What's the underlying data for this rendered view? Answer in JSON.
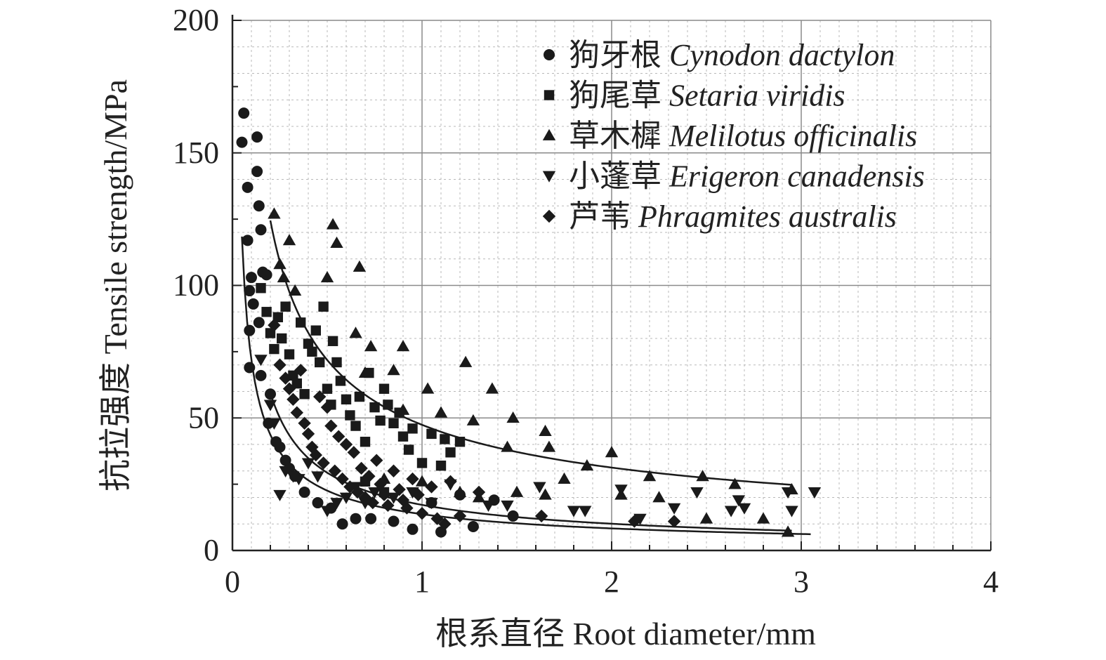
{
  "chart_data": {
    "type": "scatter",
    "xlabel": "根系直径 Root diameter/mm",
    "ylabel": "抗拉强度 Tensile strength/MPa",
    "xlim": [
      0,
      4
    ],
    "ylim": [
      0,
      200
    ],
    "x_ticks": [
      "0",
      "1",
      "2",
      "3",
      "4"
    ],
    "y_ticks": [
      "0",
      "50",
      "100",
      "150",
      "200"
    ],
    "grid": true,
    "legend_position": "top-right",
    "series": [
      {
        "name": "狗牙根 Cynodon dactylon",
        "marker": "circle",
        "points": [
          [
            0.05,
            154
          ],
          [
            0.06,
            165
          ],
          [
            0.08,
            137
          ],
          [
            0.08,
            117
          ],
          [
            0.09,
            98
          ],
          [
            0.1,
            103
          ],
          [
            0.11,
            93
          ],
          [
            0.09,
            83
          ],
          [
            0.09,
            69
          ],
          [
            0.13,
            156
          ],
          [
            0.13,
            143
          ],
          [
            0.14,
            130
          ],
          [
            0.15,
            121
          ],
          [
            0.16,
            105
          ],
          [
            0.18,
            104
          ],
          [
            0.14,
            86
          ],
          [
            0.15,
            66
          ],
          [
            0.2,
            59
          ],
          [
            0.19,
            48
          ],
          [
            0.23,
            41
          ],
          [
            0.25,
            39
          ],
          [
            0.28,
            34
          ],
          [
            0.3,
            31
          ],
          [
            0.33,
            28
          ],
          [
            0.38,
            22
          ],
          [
            0.45,
            18
          ],
          [
            0.52,
            16
          ],
          [
            0.58,
            10
          ],
          [
            0.65,
            12
          ],
          [
            0.73,
            12
          ],
          [
            0.85,
            11
          ],
          [
            0.95,
            8
          ],
          [
            1.05,
            18
          ],
          [
            1.1,
            7
          ],
          [
            1.2,
            21
          ],
          [
            1.27,
            9
          ],
          [
            1.38,
            19
          ],
          [
            1.48,
            13
          ]
        ]
      },
      {
        "name": "狗尾草 Setaria viridis",
        "marker": "square",
        "points": [
          [
            0.15,
            99
          ],
          [
            0.18,
            90
          ],
          [
            0.2,
            82
          ],
          [
            0.22,
            76
          ],
          [
            0.24,
            88
          ],
          [
            0.26,
            80
          ],
          [
            0.28,
            92
          ],
          [
            0.3,
            74
          ],
          [
            0.32,
            66
          ],
          [
            0.34,
            63
          ],
          [
            0.36,
            86
          ],
          [
            0.38,
            59
          ],
          [
            0.4,
            78
          ],
          [
            0.42,
            75
          ],
          [
            0.44,
            83
          ],
          [
            0.46,
            71
          ],
          [
            0.48,
            92
          ],
          [
            0.5,
            61
          ],
          [
            0.52,
            55
          ],
          [
            0.53,
            79
          ],
          [
            0.55,
            71
          ],
          [
            0.57,
            64
          ],
          [
            0.6,
            57
          ],
          [
            0.62,
            51
          ],
          [
            0.65,
            47
          ],
          [
            0.67,
            58
          ],
          [
            0.7,
            41
          ],
          [
            0.72,
            67
          ],
          [
            0.75,
            54
          ],
          [
            0.78,
            49
          ],
          [
            0.8,
            61
          ],
          [
            0.82,
            55
          ],
          [
            0.85,
            48
          ],
          [
            0.88,
            52
          ],
          [
            0.9,
            43
          ],
          [
            0.93,
            38
          ],
          [
            0.95,
            46
          ],
          [
            1.0,
            33
          ],
          [
            1.05,
            44
          ],
          [
            1.1,
            32
          ],
          [
            1.12,
            42
          ],
          [
            1.15,
            37
          ],
          [
            1.2,
            41
          ],
          [
            0.7,
            26
          ],
          [
            0.8,
            22
          ]
        ]
      },
      {
        "name": "草木樨 Melilotus officinalis",
        "marker": "triangle-up",
        "points": [
          [
            0.22,
            127
          ],
          [
            0.25,
            108
          ],
          [
            0.27,
            103
          ],
          [
            0.3,
            117
          ],
          [
            0.33,
            98
          ],
          [
            0.5,
            103
          ],
          [
            0.53,
            123
          ],
          [
            0.55,
            116
          ],
          [
            0.67,
            107
          ],
          [
            0.65,
            82
          ],
          [
            0.7,
            67
          ],
          [
            0.73,
            77
          ],
          [
            0.85,
            68
          ],
          [
            0.9,
            77
          ],
          [
            0.9,
            53
          ],
          [
            1.03,
            61
          ],
          [
            1.1,
            52
          ],
          [
            1.23,
            71
          ],
          [
            1.27,
            49
          ],
          [
            1.37,
            61
          ],
          [
            1.48,
            50
          ],
          [
            1.45,
            39
          ],
          [
            1.65,
            45
          ],
          [
            1.67,
            39
          ],
          [
            1.75,
            27
          ],
          [
            1.87,
            32
          ],
          [
            2.0,
            37
          ],
          [
            2.2,
            28
          ],
          [
            2.25,
            20
          ],
          [
            2.48,
            28
          ],
          [
            2.5,
            12
          ],
          [
            2.65,
            25
          ],
          [
            2.8,
            12
          ],
          [
            2.93,
            7
          ],
          [
            2.95,
            23
          ],
          [
            1.2,
            22
          ],
          [
            1.3,
            20
          ],
          [
            1.5,
            22
          ],
          [
            1.65,
            21
          ],
          [
            2.05,
            21
          ],
          [
            0.8,
            27
          ],
          [
            1.0,
            26
          ]
        ]
      },
      {
        "name": "小蓬草 Erigeron canadensis",
        "marker": "triangle-down",
        "points": [
          [
            0.15,
            72
          ],
          [
            0.2,
            55
          ],
          [
            0.22,
            48
          ],
          [
            0.25,
            21
          ],
          [
            0.28,
            30
          ],
          [
            0.32,
            28
          ],
          [
            0.35,
            27
          ],
          [
            0.4,
            33
          ],
          [
            0.45,
            28
          ],
          [
            0.5,
            15
          ],
          [
            0.55,
            18
          ],
          [
            0.6,
            20
          ],
          [
            0.65,
            24
          ],
          [
            0.7,
            18
          ],
          [
            0.75,
            22
          ],
          [
            0.85,
            20
          ],
          [
            0.95,
            22
          ],
          [
            1.05,
            18
          ],
          [
            1.15,
            25
          ],
          [
            1.35,
            17
          ],
          [
            1.45,
            17
          ],
          [
            1.62,
            24
          ],
          [
            1.8,
            15
          ],
          [
            1.86,
            15
          ],
          [
            2.05,
            23
          ],
          [
            2.15,
            12
          ],
          [
            2.33,
            16
          ],
          [
            2.45,
            22
          ],
          [
            2.63,
            15
          ],
          [
            2.67,
            19
          ],
          [
            2.7,
            16
          ],
          [
            2.93,
            22
          ],
          [
            2.95,
            15
          ],
          [
            3.07,
            22
          ]
        ]
      },
      {
        "name": "芦苇 Phragmites australis",
        "marker": "diamond",
        "points": [
          [
            0.22,
            85
          ],
          [
            0.25,
            70
          ],
          [
            0.28,
            65
          ],
          [
            0.3,
            61
          ],
          [
            0.32,
            57
          ],
          [
            0.34,
            52
          ],
          [
            0.36,
            68
          ],
          [
            0.38,
            48
          ],
          [
            0.4,
            44
          ],
          [
            0.42,
            39
          ],
          [
            0.44,
            36
          ],
          [
            0.46,
            58
          ],
          [
            0.48,
            33
          ],
          [
            0.5,
            54
          ],
          [
            0.52,
            47
          ],
          [
            0.54,
            30
          ],
          [
            0.56,
            43
          ],
          [
            0.58,
            27
          ],
          [
            0.6,
            40
          ],
          [
            0.62,
            24
          ],
          [
            0.64,
            37
          ],
          [
            0.66,
            22
          ],
          [
            0.68,
            31
          ],
          [
            0.7,
            20
          ],
          [
            0.72,
            28
          ],
          [
            0.74,
            18
          ],
          [
            0.76,
            34
          ],
          [
            0.78,
            25
          ],
          [
            0.8,
            21
          ],
          [
            0.82,
            17
          ],
          [
            0.85,
            30
          ],
          [
            0.88,
            23
          ],
          [
            0.9,
            19
          ],
          [
            0.92,
            16
          ],
          [
            0.95,
            27
          ],
          [
            0.98,
            21
          ],
          [
            1.0,
            14
          ],
          [
            1.05,
            24
          ],
          [
            1.08,
            12
          ],
          [
            1.12,
            10
          ],
          [
            1.15,
            26
          ],
          [
            1.2,
            13
          ],
          [
            1.3,
            22
          ],
          [
            1.63,
            13
          ],
          [
            2.12,
            11
          ],
          [
            2.33,
            11
          ]
        ]
      }
    ],
    "fit_curves": [
      {
        "a": 13.7,
        "b": -0.72,
        "x_range": [
          0.05,
          3.05
        ]
      },
      {
        "a": 17.2,
        "b": -0.77,
        "x_range": [
          0.2,
          2.95
        ]
      },
      {
        "a": 47.4,
        "b": -0.6,
        "x_range": [
          0.2,
          2.95
        ]
      }
    ]
  }
}
